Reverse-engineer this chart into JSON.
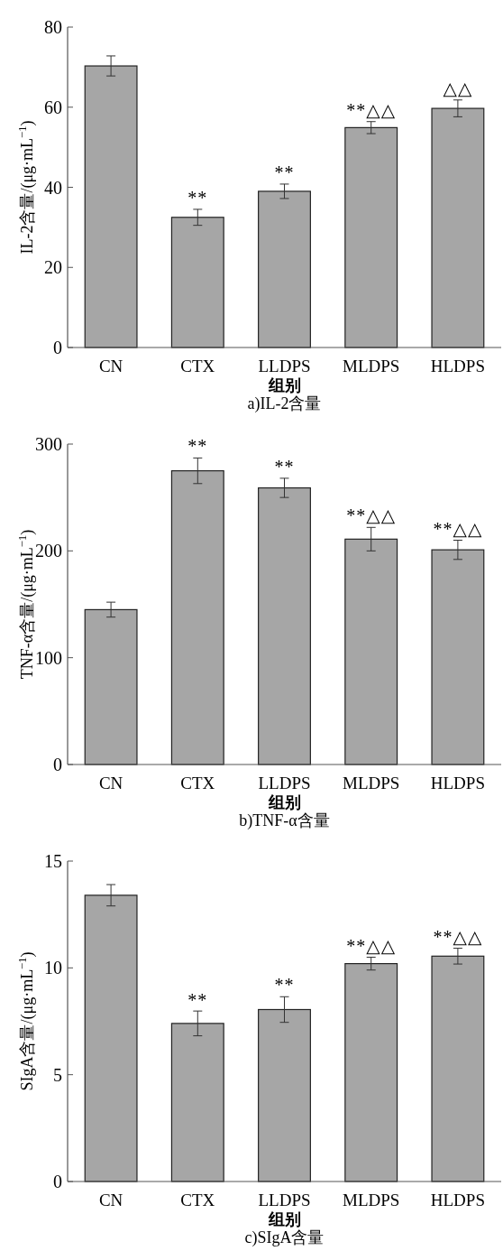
{
  "chart_data": [
    {
      "type": "bar",
      "title": "a)IL-2含量",
      "xlabel": "组别",
      "ylabel": "IL-2含量/(μg·mL$^{−1}$)",
      "categories": [
        "CN",
        "CTX",
        "LLDPS",
        "MLDPS",
        "HLDPS"
      ],
      "values": [
        70.3,
        32.5,
        39.0,
        54.9,
        59.7
      ],
      "errors": [
        2.5,
        2.0,
        1.8,
        1.5,
        2.1
      ],
      "color": "#a6a6a6",
      "ylim": [
        0,
        80
      ],
      "yticks": [
        0,
        20,
        40,
        60,
        80
      ],
      "annotations": [
        {
          "text": "**",
          "x": "CTX",
          "y": 34.5
        },
        {
          "text": "**",
          "x": "LLDPS",
          "y": 40.8
        },
        {
          "text": "**△△",
          "x": "MLDPS",
          "y": 56.4
        },
        {
          "text": "△△",
          "x": "HLDPS",
          "y": 61.8
        }
      ]
    },
    {
      "type": "bar",
      "title": "b)TNF-α含量",
      "xlabel": "组别",
      "ylabel": "TNF-α含量/(μg·mL$^{−1}$)",
      "categories": [
        "CN",
        "CTX",
        "LLDPS",
        "MLDPS",
        "HLDPS"
      ],
      "values": [
        145,
        275,
        259,
        211,
        201
      ],
      "errors": [
        7,
        12,
        9,
        11,
        9
      ],
      "color": "#a6a6a6",
      "ylim": [
        0,
        300
      ],
      "yticks": [
        0,
        100,
        200,
        300
      ],
      "annotations": [
        {
          "text": "**",
          "x": "CTX",
          "y": 287
        },
        {
          "text": "**",
          "x": "LLDPS",
          "y": 268
        },
        {
          "text": "**△△",
          "x": "MLDPS",
          "y": 222
        },
        {
          "text": "**△△",
          "x": "HLDPS",
          "y": 210
        }
      ]
    },
    {
      "type": "bar",
      "title": "c)SIgA含量",
      "xlabel": "组别",
      "ylabel": "SIgA含量/(μg·mL$^{−1}$)",
      "categories": [
        "CN",
        "CTX",
        "LLDPS",
        "MLDPS",
        "HLDPS"
      ],
      "values": [
        13.4,
        7.4,
        8.05,
        10.2,
        10.55
      ],
      "errors": [
        0.5,
        0.58,
        0.6,
        0.3,
        0.37
      ],
      "color": "#a6a6a6",
      "ylim": [
        0,
        15
      ],
      "yticks": [
        0,
        5,
        10,
        15
      ],
      "annotations": [
        {
          "text": "**",
          "x": "CTX",
          "y": 7.95
        },
        {
          "text": "**",
          "x": "LLDPS",
          "y": 8.65
        },
        {
          "text": "**△△",
          "x": "MLDPS",
          "y": 10.5
        },
        {
          "text": "**△△",
          "x": "HLDPS",
          "y": 10.9
        }
      ]
    }
  ]
}
